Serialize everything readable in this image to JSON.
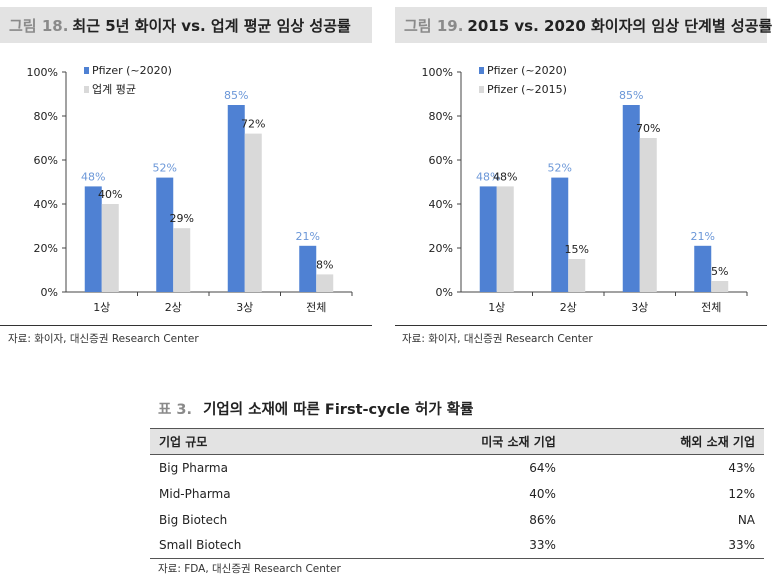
{
  "figures": [
    {
      "number": "그림 18.",
      "title": "최근 5년 화이자 vs. 업계 평균 임상 성공률",
      "source": "자료: 화이자, 대신증권 Research Center"
    },
    {
      "number": "그림 19.",
      "title": "2015 vs. 2020 화이자의 임상 단계별 성공률",
      "source": "자료: 화이자, 대신증권 Research Center"
    }
  ],
  "chart_data": [
    {
      "type": "bar",
      "title": "최근 5년 화이자 vs. 업계 평균 임상 성공률",
      "categories": [
        "1상",
        "2상",
        "3상",
        "전체"
      ],
      "series": [
        {
          "name": "Pfizer (~2020)",
          "values": [
            48,
            52,
            85,
            21
          ],
          "color": "#4f81d3",
          "label_color": "#6b97d8"
        },
        {
          "name": "업계 평균",
          "values": [
            40,
            29,
            72,
            8
          ],
          "color": "#d9d9d9",
          "label_color": "#222222"
        }
      ],
      "yticks": [
        "0%",
        "20%",
        "40%",
        "60%",
        "80%",
        "100%"
      ],
      "ylim": [
        0,
        100
      ],
      "legend": "top-left",
      "grid": false
    },
    {
      "type": "bar",
      "title": "2015 vs. 2020 화이자의 임상 단계별 성공률",
      "categories": [
        "1상",
        "2상",
        "3상",
        "전체"
      ],
      "series": [
        {
          "name": "Pfizer (~2020)",
          "values": [
            48,
            52,
            85,
            21
          ],
          "color": "#4f81d3",
          "label_color": "#6b97d8"
        },
        {
          "name": "Pfizer (~2015)",
          "values": [
            48,
            15,
            70,
            5
          ],
          "color": "#d9d9d9",
          "label_color": "#222222"
        }
      ],
      "yticks": [
        "0%",
        "20%",
        "40%",
        "60%",
        "80%",
        "100%"
      ],
      "ylim": [
        0,
        100
      ],
      "legend": "top-left",
      "grid": false
    }
  ],
  "table": {
    "number": "표 3.",
    "title": "기업의 소재에 따른 First-cycle 허가 확률",
    "headers": [
      "기업 규모",
      "미국 소재 기업",
      "해외 소재 기업"
    ],
    "rows": [
      [
        "Big Pharma",
        "64%",
        "43%"
      ],
      [
        "Mid-Pharma",
        "40%",
        "12%"
      ],
      [
        "Big Biotech",
        "86%",
        "NA"
      ],
      [
        "Small Biotech",
        "33%",
        "33%"
      ]
    ],
    "source": "자료: FDA, 대신증권 Research Center"
  }
}
